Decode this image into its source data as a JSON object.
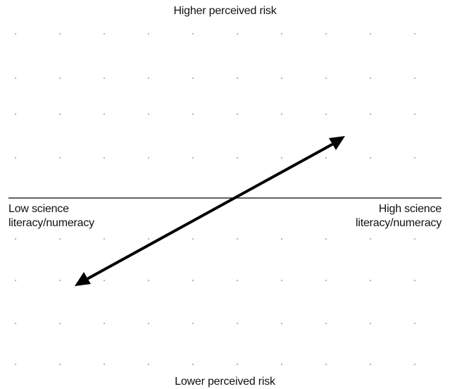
{
  "labels": {
    "top": "Higher perceived risk",
    "bottom": "Lower perceived risk",
    "left_line1": "Low science",
    "left_line2": "literacy/numeracy",
    "right_line1": "High science",
    "right_line2": "literacy/numeracy"
  },
  "colors": {
    "arrow": "#000000",
    "axis": "#000000",
    "grid_dot": "#b9b9b9"
  }
}
